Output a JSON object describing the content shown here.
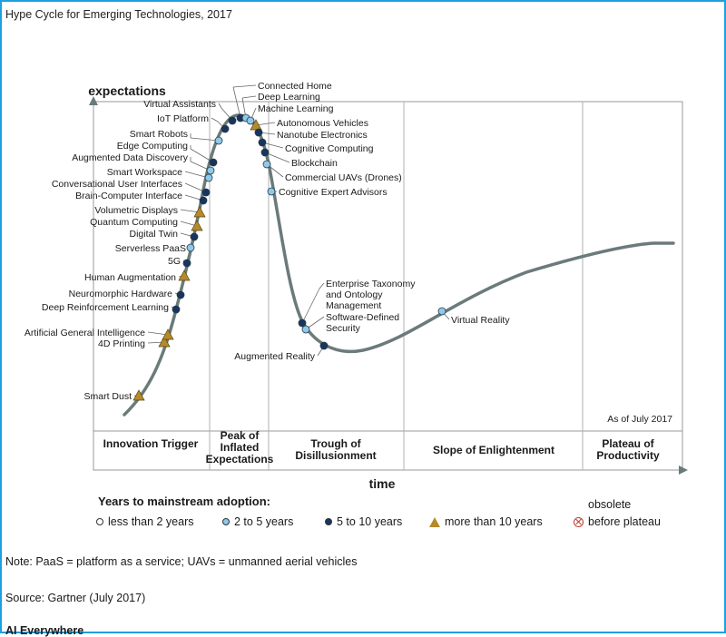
{
  "chart_data": {
    "type": "line",
    "title": "Hype Cycle for Emerging Technologies, 2017",
    "ylabel": "expectations",
    "xlabel": "time",
    "as_of": "As of July 2017",
    "phases": [
      "Innovation Trigger",
      "Peak of Inflated Expectations",
      "Trough of Disillusionment",
      "Slope of Enlightenment",
      "Plateau of Productivity"
    ],
    "phase_lines": [
      "Innovation Trigger",
      "Peak of\nInflated\nExpectations",
      "Trough of\nDisillusionment",
      "Slope of Enlightenment",
      "Plateau of\nProductivity"
    ],
    "technologies": [
      {
        "name": "Smart Dust",
        "category": "more than 10 years"
      },
      {
        "name": "4D Printing",
        "category": "more than 10 years"
      },
      {
        "name": "Artificial General Intelligence",
        "category": "more than 10 years"
      },
      {
        "name": "Deep Reinforcement Learning",
        "category": "5 to 10 years"
      },
      {
        "name": "Neuromorphic Hardware",
        "category": "5 to 10 years"
      },
      {
        "name": "Human Augmentation",
        "category": "more than 10 years"
      },
      {
        "name": "5G",
        "category": "5 to 10 years"
      },
      {
        "name": "Serverless PaaS",
        "category": "2 to 5 years"
      },
      {
        "name": "Digital Twin",
        "category": "5 to 10 years"
      },
      {
        "name": "Quantum Computing",
        "category": "more than 10 years"
      },
      {
        "name": "Volumetric Displays",
        "category": "more than 10 years"
      },
      {
        "name": "Brain-Computer Interface",
        "category": "5 to 10 years"
      },
      {
        "name": "Conversational User Interfaces",
        "category": "5 to 10 years"
      },
      {
        "name": "Smart Workspace",
        "category": "2 to 5 years"
      },
      {
        "name": "Augmented Data Discovery",
        "category": "2 to 5 years"
      },
      {
        "name": "Edge Computing",
        "category": "5 to 10 years"
      },
      {
        "name": "Smart Robots",
        "category": "2 to 5 years"
      },
      {
        "name": "IoT Platform",
        "category": "5 to 10 years"
      },
      {
        "name": "Virtual Assistants",
        "category": "5 to 10 years"
      },
      {
        "name": "Connected Home",
        "category": "5 to 10 years"
      },
      {
        "name": "Deep Learning",
        "category": "2 to 5 years"
      },
      {
        "name": "Machine Learning",
        "category": "2 to 5 years"
      },
      {
        "name": "Autonomous Vehicles",
        "category": "more than 10 years"
      },
      {
        "name": "Nanotube Electronics",
        "category": "5 to 10 years"
      },
      {
        "name": "Cognitive Computing",
        "category": "5 to 10 years"
      },
      {
        "name": "Blockchain",
        "category": "5 to 10 years"
      },
      {
        "name": "Commercial UAVs (Drones)",
        "category": "2 to 5 years"
      },
      {
        "name": "Cognitive Expert Advisors",
        "category": "2 to 5 years"
      },
      {
        "name": "Enterprise Taxonomy\nand Ontology\nManagement",
        "category": "5 to 10 years"
      },
      {
        "name": "Software-Defined\nSecurity",
        "category": "2 to 5 years"
      },
      {
        "name": "Augmented Reality",
        "category": "5 to 10 years"
      },
      {
        "name": "Virtual Reality",
        "category": "2 to 5 years"
      }
    ],
    "legend": {
      "title": "Years to mainstream adoption:",
      "items": [
        {
          "label": "less than 2 years",
          "mark": "white"
        },
        {
          "label": "2 to 5 years",
          "mark": "light"
        },
        {
          "label": "5 to 10 years",
          "mark": "dark"
        },
        {
          "label": "more than 10 years",
          "mark": "triangle"
        },
        {
          "label": "obsolete",
          "label2": "before plateau",
          "mark": "x"
        }
      ]
    },
    "colors": {
      "curve": "#6b7a7a",
      "light": "#8ec9ea",
      "dark": "#17365d",
      "triangle": "#b58a29",
      "obsolete": "#c0392b"
    }
  },
  "footer": {
    "note": "Note: PaaS = platform as a service; UAVs = unmanned aerial vehicles",
    "source": "Source: Gartner (July 2017)",
    "cut_text": "AI Everywhere"
  }
}
